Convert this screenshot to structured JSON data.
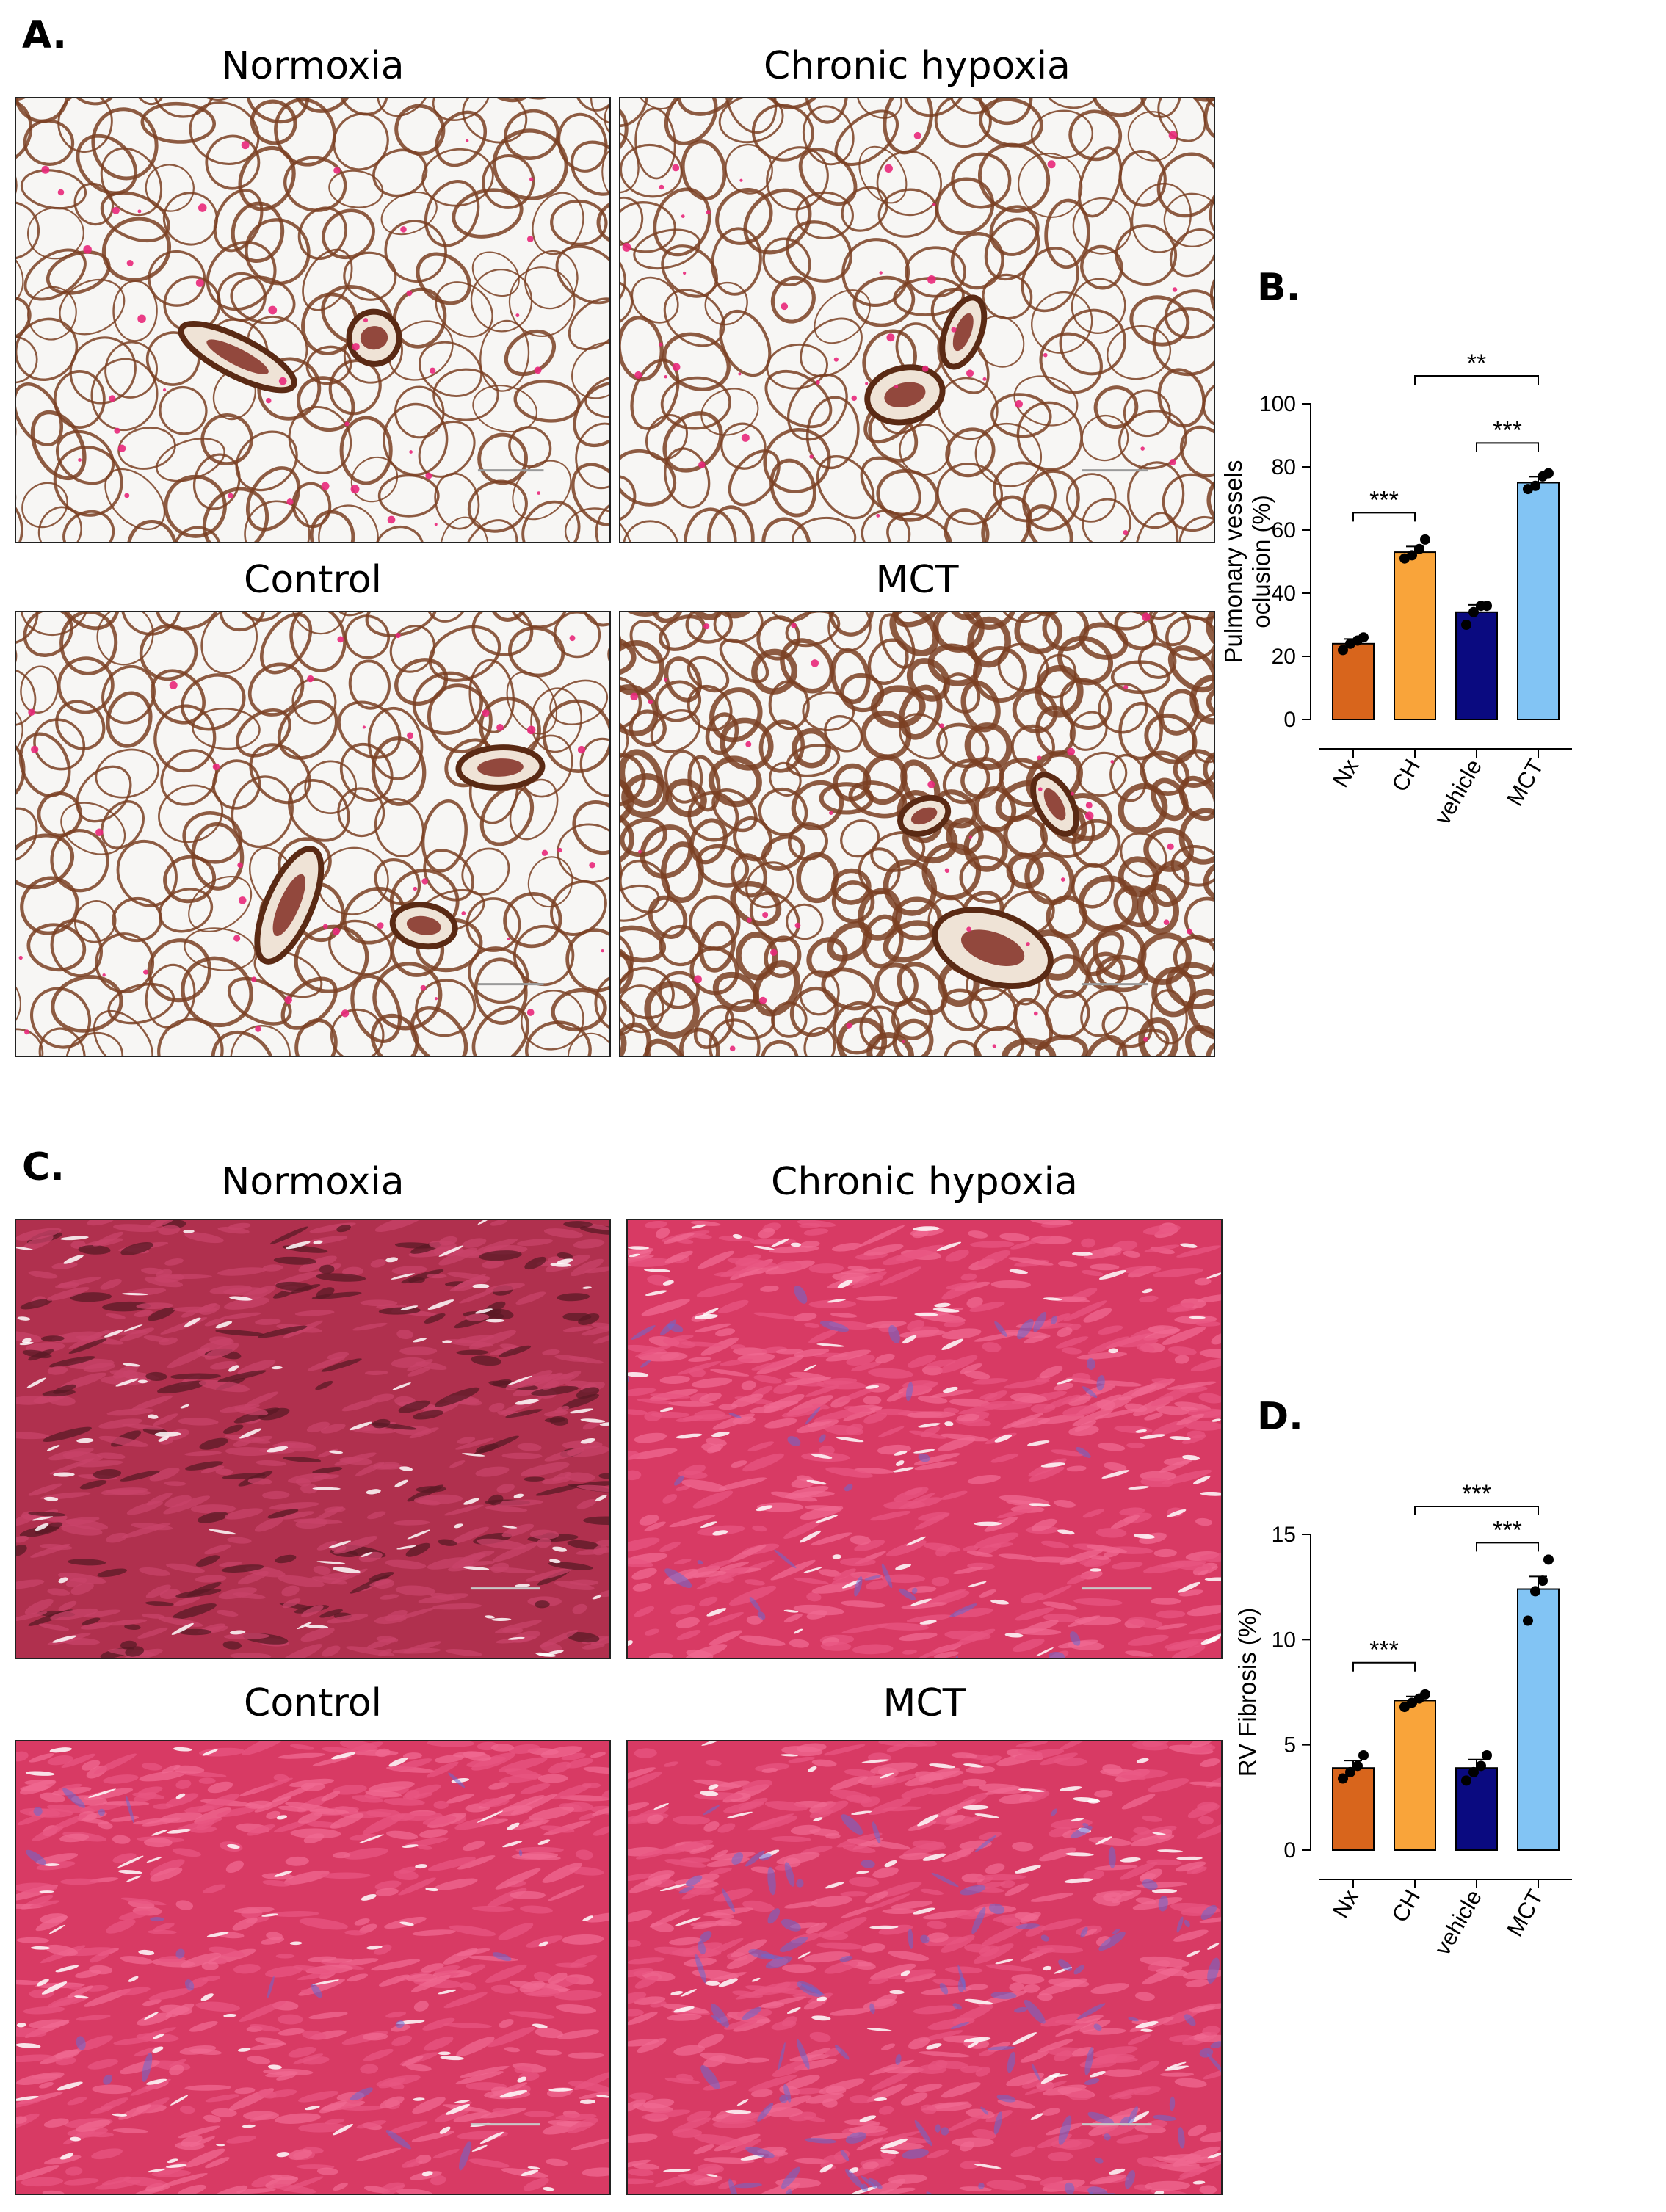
{
  "panels": {
    "a": {
      "letter": "A.",
      "images": [
        {
          "title": "Normoxia",
          "stain": "lung-elastin"
        },
        {
          "title": "Chronic hypoxia",
          "stain": "lung-elastin"
        },
        {
          "title": "Control",
          "stain": "lung-elastin"
        },
        {
          "title": "MCT",
          "stain": "lung-elastin"
        }
      ]
    },
    "b": {
      "letter": "B."
    },
    "c": {
      "letter": "C.",
      "images": [
        {
          "title": "Normoxia",
          "stain": "heart-trichrome"
        },
        {
          "title": "Chronic hypoxia",
          "stain": "heart-trichrome"
        },
        {
          "title": "Control",
          "stain": "heart-trichrome"
        },
        {
          "title": "MCT",
          "stain": "heart-trichrome"
        }
      ]
    },
    "d": {
      "letter": "D."
    }
  },
  "colors": {
    "nx": "#d8651c",
    "ch": "#f9a43a",
    "vehicle": "#0a0a80",
    "mct": "#82c4f4",
    "lung_bg": "#f7f6f4",
    "lung_tissue": "#7a3f22",
    "lung_rbc": "#e8287a",
    "heart_bg": "#d83a64",
    "heart_fiber": "#e85582",
    "heart_collagen": "#6a6ad0"
  },
  "chart_data": [
    {
      "type": "bar",
      "panel": "B.",
      "ylabel": "Pulmonary vessels oclusion (%)",
      "ylabel_lines": [
        "Pulmonary vessels",
        "oclusion (%)"
      ],
      "categories": [
        "Nx",
        "CH",
        "vehicle",
        "MCT"
      ],
      "values": [
        24,
        53,
        34,
        75
      ],
      "errors": [
        1.5,
        1.8,
        2.3,
        1.9
      ],
      "points": [
        [
          22,
          24,
          25,
          26
        ],
        [
          51,
          52,
          54,
          57
        ],
        [
          30,
          34,
          36,
          36
        ],
        [
          73,
          74,
          77,
          78
        ]
      ],
      "ylim": [
        0,
        100
      ],
      "yticks": [
        0,
        20,
        40,
        60,
        80,
        100
      ],
      "significance": [
        {
          "from": 0,
          "to": 1,
          "label": "***"
        },
        {
          "from": 1,
          "to": 3,
          "label": "**"
        },
        {
          "from": 2,
          "to": 3,
          "label": "***"
        }
      ]
    },
    {
      "type": "bar",
      "panel": "D.",
      "ylabel": "RV Fibrosis (%)",
      "ylabel_lines": [
        "RV Fibrosis (%)"
      ],
      "categories": [
        "Nx",
        "CH",
        "vehicle",
        "MCT"
      ],
      "values": [
        3.9,
        7.1,
        3.9,
        12.4
      ],
      "errors": [
        0.35,
        0.2,
        0.4,
        0.6
      ],
      "points": [
        [
          3.4,
          3.7,
          4.0,
          4.5
        ],
        [
          6.8,
          7.0,
          7.2,
          7.4
        ],
        [
          3.3,
          3.7,
          4.0,
          4.5
        ],
        [
          10.9,
          12.3,
          12.8,
          13.8
        ]
      ],
      "ylim": [
        0,
        15
      ],
      "yticks": [
        0,
        5,
        10,
        15
      ],
      "significance": [
        {
          "from": 0,
          "to": 1,
          "label": "***"
        },
        {
          "from": 1,
          "to": 3,
          "label": "***"
        },
        {
          "from": 2,
          "to": 3,
          "label": "***"
        }
      ]
    }
  ]
}
